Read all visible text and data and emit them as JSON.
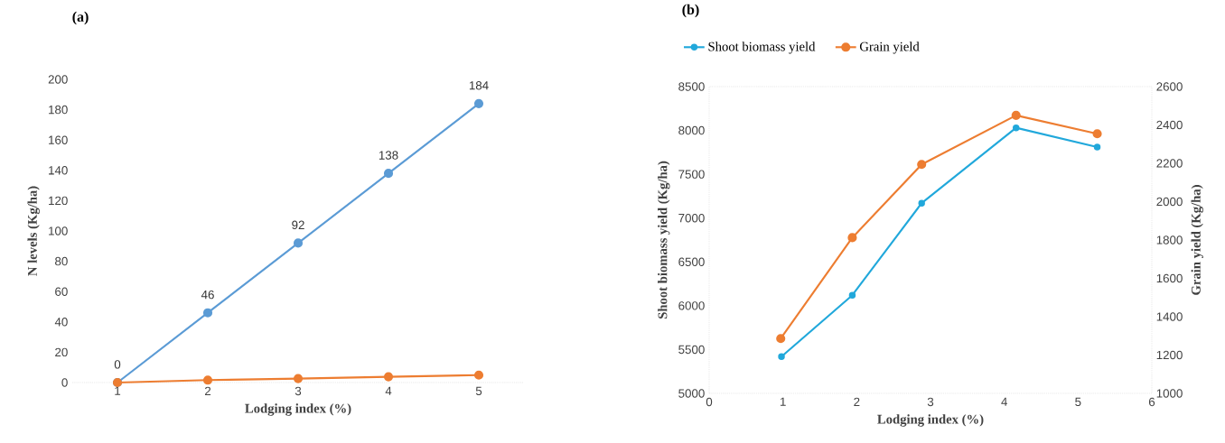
{
  "chart_data": [
    {
      "type": "line",
      "title": "(a)",
      "xlabel": "Lodging index (%)",
      "ylabel": "N levels (Kg/ha)",
      "categories": [
        "1",
        "2",
        "3",
        "4",
        "5"
      ],
      "series": [
        {
          "color": "#5b9bd5",
          "values": [
            0,
            46,
            92,
            138,
            184
          ],
          "value_labels": [
            "0",
            "46",
            "92",
            "138",
            "184"
          ]
        },
        {
          "color": "#ed7d31",
          "values": [
            0,
            1.6,
            2.6,
            3.8,
            4.9
          ]
        }
      ],
      "ylim": [
        0,
        200
      ],
      "yticks": [
        0,
        20,
        40,
        60,
        80,
        100,
        120,
        140,
        160,
        180,
        200
      ],
      "marker": "circle",
      "legend": false,
      "grid": false
    },
    {
      "type": "line",
      "title": "(b)",
      "xlabel": "Lodging index (%)",
      "ylabel": "Shoot biomass yield (Kg/ha)",
      "y2label": "Grain yield (Kg/ha)",
      "series": [
        {
          "name": "Shoot biomass yield",
          "color": "#21a8db",
          "x": [
            0.98,
            1.94,
            2.88,
            4.16,
            5.26
          ],
          "values": [
            5420,
            6120,
            7170,
            8030,
            7810
          ]
        },
        {
          "name": "Grain yield",
          "color": "#ed7d31",
          "axis": "y2",
          "x": [
            0.97,
            1.94,
            2.88,
            4.16,
            5.26
          ],
          "values": [
            1286,
            1812,
            2194,
            2450,
            2354
          ]
        }
      ],
      "xlim": [
        0,
        6
      ],
      "xticks": [
        0,
        1,
        2,
        3,
        4,
        5,
        6
      ],
      "ylim": [
        5000,
        8500
      ],
      "yticks": [
        5000,
        5500,
        6000,
        6500,
        7000,
        7500,
        8000,
        8500
      ],
      "y2lim": [
        1000,
        2600
      ],
      "y2ticks": [
        1000,
        1200,
        1400,
        1600,
        1800,
        2000,
        2200,
        2400,
        2600
      ],
      "marker": "circle",
      "legend": "top",
      "grid": false
    }
  ]
}
